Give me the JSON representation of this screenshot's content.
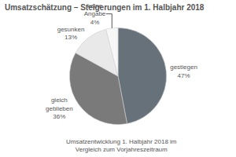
{
  "chart_data": {
    "type": "pie",
    "title": "Umsatzschätzung – Steigerungen im 1. Halbjahr 2018",
    "categories": [
      "gestiegen",
      "gleich geblieben",
      "gesunken",
      "keine Angabe"
    ],
    "values": [
      47,
      36,
      13,
      4
    ],
    "value_labels": [
      "47%",
      "36%",
      "13%",
      "4%"
    ],
    "colors": [
      "#66717a",
      "#7a7a7a",
      "#e9e9e9",
      "#f7f7f7"
    ],
    "data_labels": true,
    "annotations": [
      "Umsatzentwicklung 1. Halbjahr 2018 im",
      "Vergleich zum Vorjahreszeitraum"
    ]
  }
}
